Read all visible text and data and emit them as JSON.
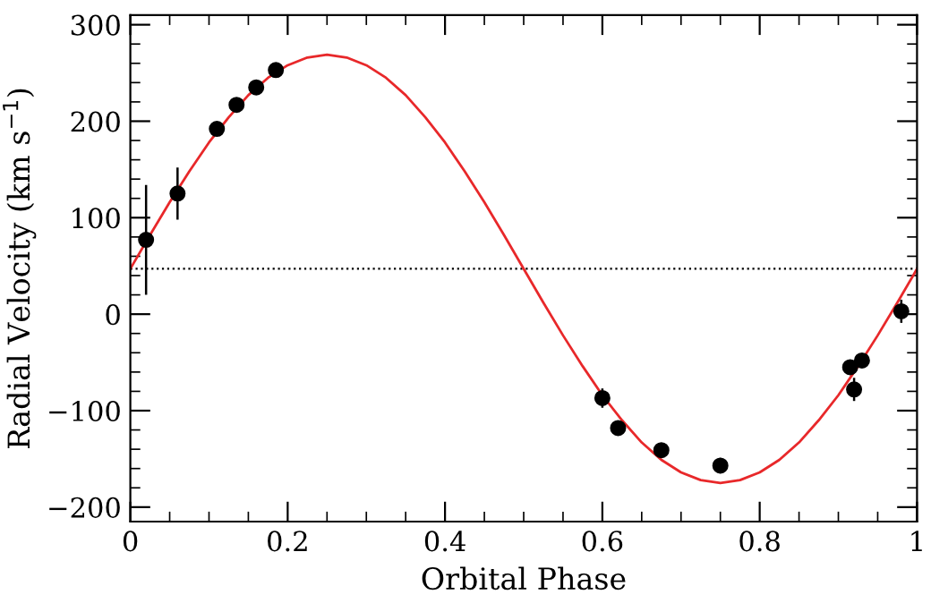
{
  "chart_data": {
    "type": "scatter",
    "xlabel": "Orbital Phase",
    "ylabel": "Radial Velocity (km s$^{−1}$)",
    "xlim": [
      0,
      1
    ],
    "ylim": [
      -215,
      310
    ],
    "xticks": [
      0,
      0.2,
      0.4,
      0.6,
      0.8,
      1
    ],
    "yticks": [
      -200,
      -100,
      0,
      100,
      200,
      300
    ],
    "grid": false,
    "legend": false,
    "ref_lines": [
      {
        "axis": "y",
        "value": 47,
        "line_style": "dotted",
        "color": "#000000"
      }
    ],
    "series": [
      {
        "color": "#000000",
        "marker": "circle",
        "x": [
          0.02,
          0.06,
          0.11,
          0.135,
          0.16,
          0.185,
          0.6,
          0.62,
          0.675,
          0.75,
          0.915,
          0.92,
          0.93,
          0.98
        ],
        "values": [
          77,
          125,
          192,
          217,
          235,
          253,
          -87,
          -118,
          -141,
          -157,
          -55,
          -78,
          -48,
          3
        ],
        "errors": [
          57,
          27,
          null,
          null,
          null,
          null,
          10,
          null,
          null,
          8,
          null,
          12,
          null,
          12
        ]
      },
      {
        "type": "line",
        "color": "#e8282a",
        "marker": "none",
        "line_style": "solid",
        "x": [
          0,
          0.025,
          0.05,
          0.075,
          0.1,
          0.125,
          0.15,
          0.175,
          0.2,
          0.225,
          0.25,
          0.275,
          0.3,
          0.325,
          0.35,
          0.375,
          0.4,
          0.425,
          0.45,
          0.475,
          0.5,
          0.525,
          0.55,
          0.575,
          0.6,
          0.625,
          0.65,
          0.675,
          0.7,
          0.725,
          0.75,
          0.775,
          0.8,
          0.825,
          0.85,
          0.875,
          0.9,
          0.925,
          0.95,
          0.975,
          1
        ],
        "values": [
          47,
          82,
          116,
          148,
          178,
          204,
          227,
          245,
          258,
          266,
          269,
          266,
          258,
          245,
          227,
          204,
          178,
          148,
          116,
          82,
          47,
          12,
          -22,
          -54,
          -84,
          -110,
          -133,
          -151,
          -164,
          -172,
          -175,
          -172,
          -164,
          -151,
          -133,
          -110,
          -84,
          -54,
          -22,
          12,
          47
        ]
      }
    ]
  }
}
